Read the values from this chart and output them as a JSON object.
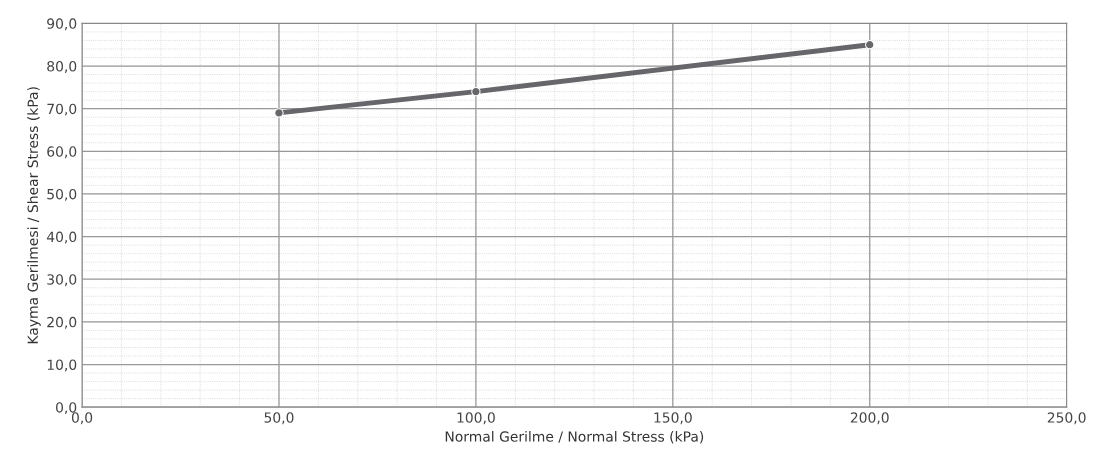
{
  "chart_data": {
    "type": "line",
    "xlabel": "Normal Gerilme / Normal Stress (kPa)",
    "ylabel": "Kayma Gerilmesi / Shear Stress (kPa)",
    "x": [
      50,
      100,
      200
    ],
    "series": [
      {
        "color": "#66666b",
        "values": [
          69,
          74,
          85
        ]
      }
    ],
    "xlim": [
      0,
      250
    ],
    "ylim": [
      0,
      90
    ],
    "xticks": [
      {
        "value": 0,
        "label": "0,0"
      },
      {
        "value": 50,
        "label": "50,0"
      },
      {
        "value": 100,
        "label": "100,0"
      },
      {
        "value": 150,
        "label": "150,0"
      },
      {
        "value": 200,
        "label": "200,0"
      },
      {
        "value": 250,
        "label": "250,0"
      }
    ],
    "yticks": [
      {
        "value": 0,
        "label": "0,0"
      },
      {
        "value": 10,
        "label": "10,0"
      },
      {
        "value": 20,
        "label": "20,0"
      },
      {
        "value": 30,
        "label": "30,0"
      },
      {
        "value": 40,
        "label": "40,0"
      },
      {
        "value": 50,
        "label": "50,0"
      },
      {
        "value": 60,
        "label": "60,0"
      },
      {
        "value": 70,
        "label": "70,0"
      },
      {
        "value": 80,
        "label": "80,0"
      },
      {
        "value": 90,
        "label": "90,0"
      }
    ],
    "grid": true,
    "marker": "circle",
    "line_style": "solid"
  }
}
